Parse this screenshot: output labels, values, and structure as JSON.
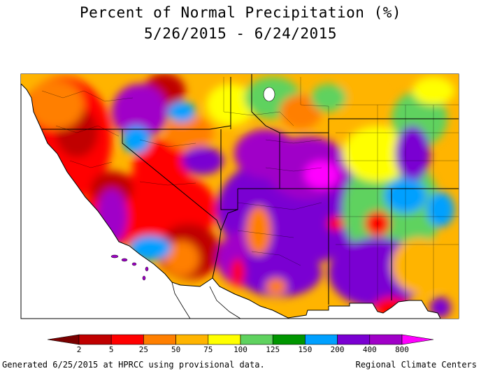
{
  "title": "Percent of Normal Precipitation (%)",
  "period": "5/26/2015 - 6/24/2015",
  "legend": {
    "labels": [
      "2",
      "5",
      "25",
      "50",
      "75",
      "100",
      "125",
      "150",
      "200",
      "400",
      "800"
    ],
    "colors": [
      "#7a0000",
      "#c00000",
      "#ff0000",
      "#ff7f00",
      "#ffb400",
      "#ffff00",
      "#5fd25f",
      "#009600",
      "#00a0ff",
      "#7a00d2",
      "#a000c8",
      "#ff00ff"
    ]
  },
  "footer": {
    "generated": "Generated 6/25/2015 at HPRCC using provisional data.",
    "credit": "Regional Climate Centers"
  }
}
